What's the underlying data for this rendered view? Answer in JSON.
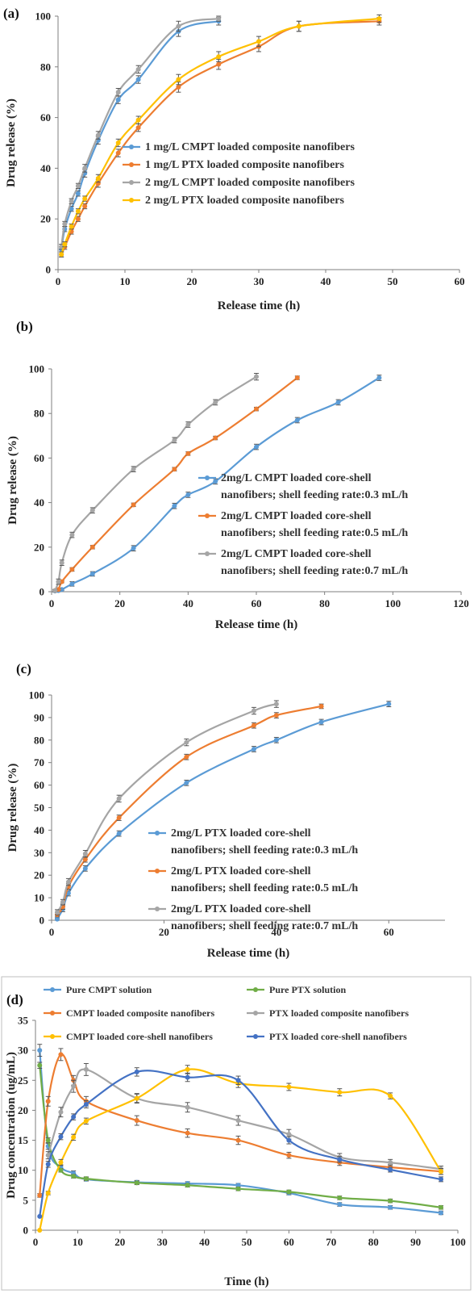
{
  "chart_data": [
    {
      "panel": "(a)",
      "type": "line",
      "xlabel": "Release time (h)",
      "ylabel": "Drug release (%)",
      "xlim": [
        0,
        60
      ],
      "ylim": [
        0,
        100
      ],
      "xticks": [
        0,
        10,
        20,
        30,
        40,
        50,
        60
      ],
      "yticks": [
        0,
        20,
        40,
        60,
        80,
        100
      ],
      "legend_position": "center-right",
      "series": [
        {
          "name": "1 mg/L CMPT loaded composite nanofibers",
          "color": "#5b9bd5",
          "x": [
            0.5,
            1,
            2,
            3,
            4,
            6,
            9,
            12,
            18,
            24
          ],
          "y": [
            8,
            16,
            24,
            30,
            38,
            51,
            67,
            75,
            94,
            98
          ],
          "err": [
            1,
            1,
            1,
            1,
            1.5,
            1.5,
            1.5,
            1.5,
            2,
            1.5
          ]
        },
        {
          "name": "1 mg/L PTX loaded composite nanofibers",
          "color": "#ed7d31",
          "x": [
            0.5,
            1,
            2,
            3,
            4,
            6,
            9,
            12,
            18,
            24,
            30,
            36,
            48
          ],
          "y": [
            6,
            9,
            15,
            20,
            25,
            34,
            46,
            56,
            72,
            81,
            88,
            96,
            98
          ],
          "err": [
            1,
            1,
            1,
            1,
            1,
            1.5,
            1.5,
            1.5,
            2,
            2,
            2,
            2,
            1.5
          ]
        },
        {
          "name": "2 mg/L CMPT loaded composite nanofibers",
          "color": "#a5a5a5",
          "x": [
            0.5,
            1,
            2,
            3,
            4,
            6,
            9,
            12,
            18,
            24
          ],
          "y": [
            9,
            18,
            27,
            33,
            40,
            53,
            70,
            79,
            96,
            99
          ],
          "err": [
            1,
            1,
            1,
            1,
            1.5,
            1.5,
            1.5,
            1.5,
            2,
            1
          ]
        },
        {
          "name": "2 mg/L PTX loaded composite nanofibers",
          "color": "#ffc000",
          "x": [
            0.5,
            1,
            2,
            3,
            4,
            6,
            9,
            12,
            18,
            24,
            30,
            36,
            48
          ],
          "y": [
            6,
            10,
            17,
            23,
            28,
            36,
            50,
            59,
            75,
            84,
            90,
            96,
            99
          ],
          "err": [
            1,
            1,
            1,
            1,
            1,
            1.5,
            1.5,
            1.5,
            2,
            2,
            2,
            2,
            1.5
          ]
        }
      ]
    },
    {
      "panel": "(b)",
      "type": "line",
      "xlabel": "Release time (h)",
      "ylabel": "Drug release (%)",
      "xlim": [
        0,
        120
      ],
      "ylim": [
        0,
        100
      ],
      "xticks": [
        0,
        20,
        40,
        60,
        80,
        100,
        120
      ],
      "yticks": [
        0,
        20,
        40,
        60,
        80,
        100
      ],
      "legend_position": "center-right",
      "series": [
        {
          "name": "2mg/L CMPT loaded core-shell nanofibers; shell feeding rate:0.3 mL/h",
          "color": "#5b9bd5",
          "x": [
            1,
            2,
            3,
            6,
            12,
            24,
            36,
            40,
            48,
            60,
            72,
            84,
            96
          ],
          "y": [
            0.3,
            0.5,
            1,
            3.5,
            8,
            19.5,
            38.5,
            43.5,
            49.5,
            65,
            77,
            85,
            96
          ],
          "err": [
            0.5,
            0.5,
            0.5,
            1,
            1,
            1.2,
            1.2,
            1.2,
            1.2,
            1.2,
            1.2,
            1.2,
            1.2
          ]
        },
        {
          "name": "2mg/L CMPT loaded core-shell nanofibers; shell feeding rate:0.5 mL/h",
          "color": "#ed7d31",
          "x": [
            1,
            2,
            3,
            6,
            12,
            24,
            36,
            40,
            48,
            60,
            72
          ],
          "y": [
            0.5,
            1,
            4.5,
            10,
            20,
            39,
            55,
            62,
            69,
            82,
            96
          ],
          "err": [
            0.5,
            0.5,
            0.5,
            0.8,
            0.8,
            0.8,
            0.8,
            0.8,
            0.8,
            0.8,
            0.8
          ]
        },
        {
          "name": "2mg/L CMPT loaded core-shell nanofibers; shell feeding rate:0.7 mL/h",
          "color": "#a5a5a5",
          "x": [
            1,
            2,
            3,
            6,
            12,
            24,
            36,
            40,
            48,
            60
          ],
          "y": [
            0.5,
            4.5,
            13,
            25.5,
            36.5,
            55,
            68,
            75,
            85,
            96.5
          ],
          "err": [
            0.5,
            1.2,
            1.2,
            1.2,
            1.2,
            1.2,
            1.2,
            1.2,
            1.2,
            1.5
          ]
        }
      ]
    },
    {
      "panel": "(c)",
      "type": "line",
      "xlabel": "Release time (h)",
      "ylabel": "Drug release (%)",
      "xlim": [
        0,
        70
      ],
      "ylim": [
        0,
        100
      ],
      "xticks": [
        0,
        20,
        40,
        60
      ],
      "yticks": [
        0,
        10,
        20,
        30,
        40,
        50,
        60,
        70,
        80,
        90,
        100
      ],
      "legend_position": "bottom-right",
      "series": [
        {
          "name": "2mg/L PTX loaded core-shell nanofibers; shell feeding rate:0.3 mL/h",
          "color": "#5b9bd5",
          "x": [
            1,
            2,
            3,
            6,
            12,
            24,
            36,
            40,
            48,
            60
          ],
          "y": [
            0.5,
            5,
            12,
            23,
            38.5,
            61,
            76,
            80,
            88,
            96
          ],
          "err": [
            0.5,
            1.2,
            1.2,
            1.2,
            1.2,
            1.2,
            1.2,
            1.2,
            1.2,
            1.2
          ]
        },
        {
          "name": "2mg/L PTX loaded core-shell nanofibers; shell feeding rate:0.5 mL/h",
          "color": "#ed7d31",
          "x": [
            1,
            2,
            3,
            6,
            12,
            24,
            36,
            40,
            48
          ],
          "y": [
            2.5,
            6,
            15,
            27,
            45.5,
            72.5,
            86.5,
            91,
            95
          ],
          "err": [
            1,
            1.2,
            1.2,
            1.2,
            1.2,
            1.2,
            1.2,
            1.2,
            1
          ]
        },
        {
          "name": "2mg/L PTX loaded core-shell nanofibers; shell feeding rate:0.7 mL/h",
          "color": "#a5a5a5",
          "x": [
            1,
            2,
            3,
            6,
            12,
            24,
            36,
            40
          ],
          "y": [
            3.5,
            8,
            17,
            29.5,
            54,
            79,
            93,
            96
          ],
          "err": [
            1.2,
            1.2,
            1.5,
            1.5,
            1.5,
            1.5,
            1.5,
            1.5
          ]
        }
      ]
    },
    {
      "panel": "(d)",
      "type": "line",
      "xlabel": "Time (h)",
      "ylabel": "Drug concentration (ug/mL)",
      "xlim": [
        0,
        100
      ],
      "ylim": [
        0,
        35
      ],
      "xticks": [
        0,
        10,
        20,
        30,
        40,
        50,
        60,
        70,
        80,
        90,
        100
      ],
      "yticks": [
        0,
        5,
        10,
        15,
        20,
        25,
        30,
        35
      ],
      "legend_position": "top",
      "series": [
        {
          "name": "Pure CMPT solution",
          "color": "#5b9bd5",
          "x": [
            1,
            3,
            6,
            9,
            12,
            24,
            36,
            48,
            60,
            72,
            84,
            96
          ],
          "y": [
            30,
            14,
            10.5,
            9.5,
            8.5,
            8,
            7.8,
            7.5,
            6.2,
            4.3,
            3.8,
            2.9
          ],
          "err": [
            1,
            0.5,
            0.4,
            0.4,
            0.3,
            0.3,
            0.3,
            0.3,
            0.3,
            0.3,
            0.3,
            0.3
          ]
        },
        {
          "name": "Pure PTX solution",
          "color": "#70ad47",
          "x": [
            1,
            3,
            6,
            9,
            12,
            24,
            36,
            48,
            60,
            72,
            84,
            96
          ],
          "y": [
            27.5,
            15,
            10,
            9,
            8.6,
            7.9,
            7.5,
            6.9,
            6.4,
            5.4,
            4.9,
            3.8
          ],
          "err": [
            0.5,
            0.4,
            0.3,
            0.3,
            0.3,
            0.3,
            0.3,
            0.3,
            0.3,
            0.3,
            0.3,
            0.3
          ]
        },
        {
          "name": "CMPT loaded composite nanofibers",
          "color": "#ed7d31",
          "x": [
            1,
            3,
            6,
            9,
            12,
            24,
            36,
            48,
            60,
            72,
            84,
            96
          ],
          "y": [
            5.8,
            21.5,
            29.3,
            25,
            21.5,
            18.3,
            16.2,
            15,
            12.5,
            11.3,
            10.5,
            9.8
          ],
          "err": [
            0.3,
            0.8,
            1,
            0.8,
            0.8,
            0.8,
            0.7,
            0.7,
            0.5,
            0.5,
            0.5,
            0.5
          ]
        },
        {
          "name": "PTX loaded composite nanofibers",
          "color": "#a5a5a5",
          "x": [
            3,
            6,
            9,
            12,
            24,
            36,
            48,
            60,
            72,
            84,
            96
          ],
          "y": [
            12.5,
            19.7,
            24,
            26.8,
            22,
            20.5,
            18.3,
            16,
            12.2,
            11.3,
            10.2
          ],
          "err": [
            0.6,
            0.8,
            1,
            1,
            0.8,
            0.8,
            0.8,
            0.8,
            0.6,
            0.5,
            0.5
          ]
        },
        {
          "name": "CMPT loaded core-shell nanofibers",
          "color": "#ffc000",
          "x": [
            1,
            3,
            6,
            9,
            12,
            24,
            36,
            48,
            60,
            72,
            84,
            96
          ],
          "y": [
            0,
            6.2,
            11.3,
            15.5,
            18.2,
            22,
            26.8,
            24.5,
            23.9,
            23,
            22.4,
            9.8
          ],
          "err": [
            0,
            0.3,
            0.5,
            0.5,
            0.5,
            0.7,
            0.7,
            0.7,
            0.6,
            0.6,
            0.5,
            0.5
          ]
        },
        {
          "name": "PTX loaded core-shell nanofibers",
          "color": "#4472c4",
          "x": [
            1,
            3,
            6,
            9,
            12,
            24,
            36,
            48,
            60,
            72,
            84,
            96
          ],
          "y": [
            2.3,
            11,
            15.6,
            18.9,
            21,
            26.4,
            25.5,
            25,
            15,
            11.8,
            10.1,
            8.5
          ],
          "err": [
            0,
            0.5,
            0.5,
            0.5,
            0.6,
            0.7,
            0.7,
            0.7,
            0.6,
            0.5,
            0.4,
            0.4
          ]
        }
      ]
    }
  ]
}
